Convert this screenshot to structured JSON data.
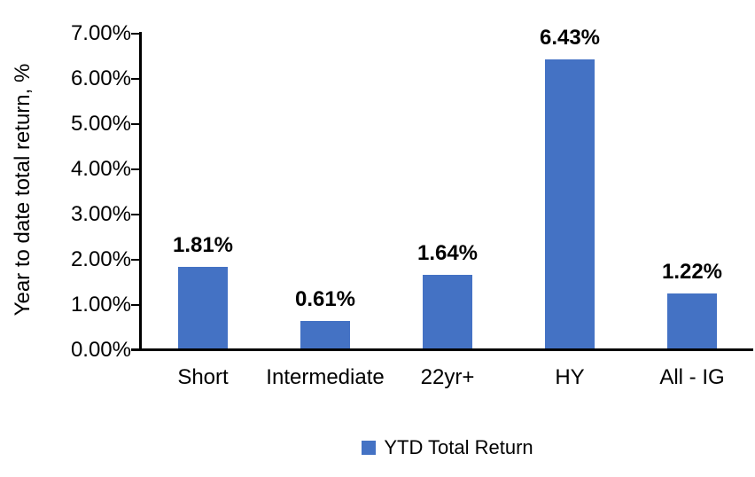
{
  "chart_data": {
    "type": "bar",
    "title": "",
    "categories": [
      "Short",
      "Intermediate",
      "22yr+",
      "HY",
      "All - IG"
    ],
    "values": [
      1.81,
      0.61,
      1.64,
      6.43,
      1.22
    ],
    "value_labels": [
      "1.81%",
      "0.61%",
      "1.64%",
      "6.43%",
      "1.22%"
    ],
    "series": [
      {
        "name": "YTD Total Return",
        "values": [
          1.81,
          0.61,
          1.64,
          6.43,
          1.22
        ]
      }
    ],
    "xlabel": "",
    "ylabel": "Year to date total return, %",
    "ylim": [
      0,
      7
    ],
    "y_ticks": [
      "0.00%",
      "1.00%",
      "2.00%",
      "3.00%",
      "4.00%",
      "5.00%",
      "6.00%",
      "7.00%"
    ],
    "grid": false,
    "bar_color": "#4472C4",
    "axis_color": "#000000",
    "legend": {
      "position": "bottom",
      "items": [
        {
          "label": "YTD Total Return",
          "color": "#4472C4"
        }
      ]
    }
  }
}
